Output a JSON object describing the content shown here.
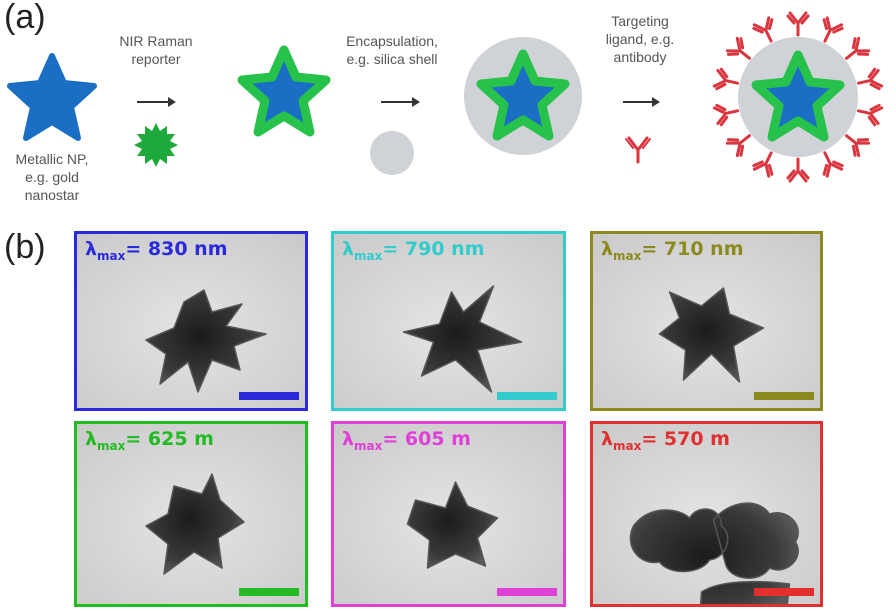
{
  "panel_a": {
    "label": "(a)",
    "captions": {
      "metallic_np": [
        "Metallic NP,",
        "e.g. gold",
        "nanostar"
      ],
      "raman_reporter": [
        "NIR Raman",
        "reporter"
      ],
      "encapsulation": [
        "Encapsulation,",
        "e.g. silica shell"
      ],
      "targeting": [
        "Targeting",
        "ligand, e.g.",
        "antibody"
      ]
    },
    "colors": {
      "star": "#1a6fc4",
      "reporter": "#1fa83c",
      "shell": "#cfd2d6",
      "antibody": "#d93640"
    }
  },
  "panel_b": {
    "label": "(b)",
    "tiles": [
      {
        "symbol": "λ",
        "subscript": "max",
        "value": "= 830 nm",
        "color": "#2a2adb"
      },
      {
        "symbol": "λ",
        "subscript": "max",
        "value": "= 790 nm",
        "color": "#33cccc"
      },
      {
        "symbol": "λ",
        "subscript": "max",
        "value": "= 710 nm",
        "color": "#8c8a1e"
      },
      {
        "symbol": "λ",
        "subscript": "max",
        "value": "= 625 m",
        "color": "#22bb22"
      },
      {
        "symbol": "λ",
        "subscript": "max",
        "value": "= 605 m",
        "color": "#e040d8"
      },
      {
        "symbol": "λ",
        "subscript": "max",
        "value": "= 570 m",
        "color": "#e03030"
      }
    ]
  }
}
